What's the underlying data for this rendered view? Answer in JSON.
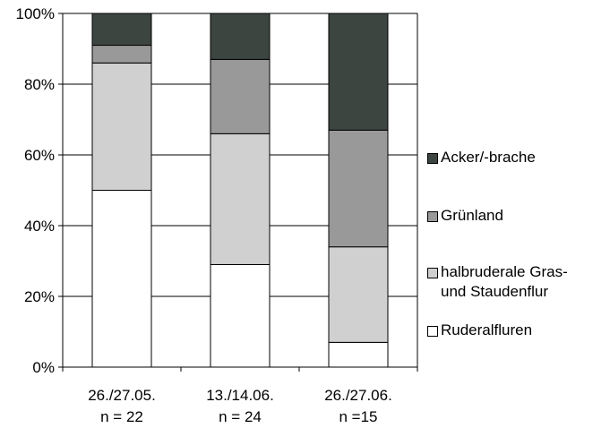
{
  "chart_data": {
    "type": "bar",
    "stacked": "percent",
    "categories": [
      "26./27.05.\nn = 22",
      "13./14.06.\nn = 24",
      "26./27.06.\nn =15"
    ],
    "series": [
      {
        "name": "Ruderalfluren",
        "color": "#ffffff",
        "values": [
          50,
          29,
          7
        ]
      },
      {
        "name": "halbruderale Gras-\nund Staudenflur",
        "color": "#d0d0d0",
        "values": [
          36,
          37,
          27
        ]
      },
      {
        "name": "Grünland",
        "color": "#999999",
        "values": [
          5,
          21,
          33
        ]
      },
      {
        "name": "Acker/-brache",
        "color": "#3d4540",
        "values": [
          9,
          13,
          33
        ]
      }
    ],
    "ylim": [
      0,
      100
    ],
    "yticks": [
      "0%",
      "20%",
      "40%",
      "60%",
      "80%",
      "100%"
    ],
    "grid": true,
    "legend_position": "right",
    "legend_order": [
      "Acker/-brache",
      "Grünland",
      "halbruderale Gras-\nund Staudenflur",
      "Ruderalfluren"
    ]
  }
}
